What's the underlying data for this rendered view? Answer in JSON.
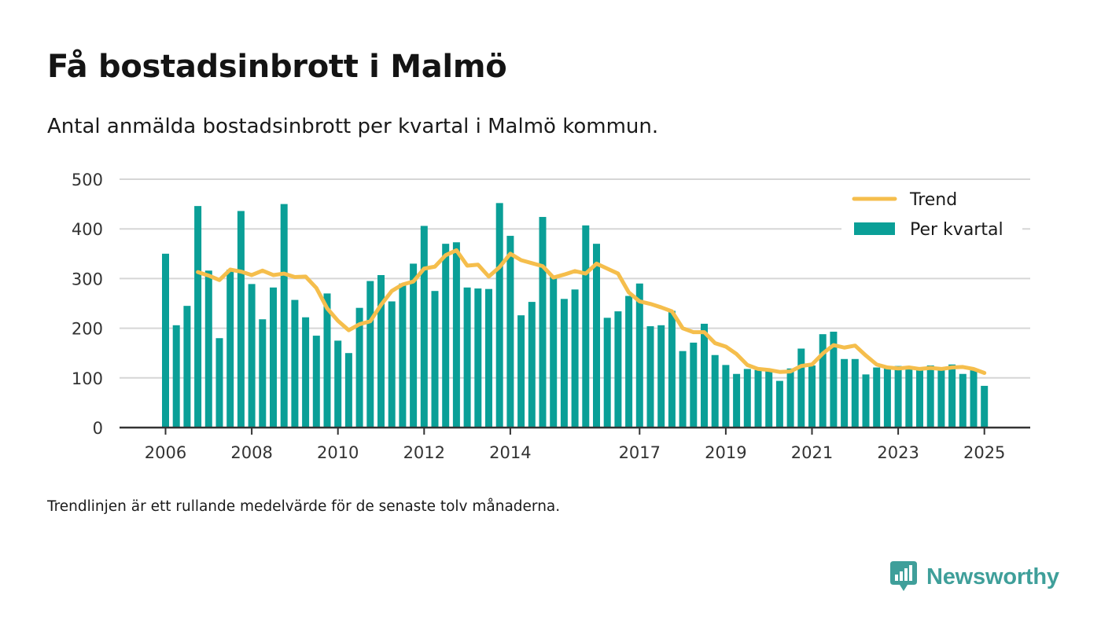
{
  "title": "Få bostadsinbrott i Malmö",
  "subtitle": "Antal anmälda bostadsinbrott per kvartal i Malmö kommun.",
  "note": "Trendlinjen är ett rullande medelvärde för de senaste tolv månaderna.",
  "brand": {
    "name": "Newsworthy",
    "color": "#3f9f9a"
  },
  "chart_data": {
    "type": "bar",
    "ylim": [
      0,
      500
    ],
    "y_ticks": [
      0,
      100,
      200,
      300,
      400,
      500
    ],
    "x_tick_labels": [
      "2006",
      "2008",
      "2010",
      "2012",
      "2014",
      "2017",
      "2019",
      "2021",
      "2023",
      "2025"
    ],
    "x_tick_index": [
      0,
      8,
      16,
      24,
      32,
      44,
      52,
      60,
      68,
      76
    ],
    "grid": true,
    "legend_position": "top-right",
    "series": [
      {
        "name": "Per kvartal",
        "type": "bar",
        "color": "#0a9f97",
        "values": [
          350,
          206,
          245,
          446,
          316,
          180,
          318,
          436,
          289,
          218,
          282,
          450,
          257,
          222,
          185,
          270,
          175,
          150,
          241,
          295,
          307,
          254,
          290,
          330,
          406,
          275,
          370,
          373,
          282,
          280,
          279,
          452,
          386,
          226,
          253,
          424,
          306,
          259,
          278,
          407,
          370,
          221,
          234,
          265,
          290,
          204,
          206,
          235,
          154,
          171,
          209,
          146,
          126,
          108,
          118,
          116,
          115,
          94,
          119,
          159,
          125,
          188,
          193,
          138,
          138,
          107,
          121,
          121,
          124,
          120,
          121,
          125,
          118,
          127,
          108,
          116,
          84
        ]
      },
      {
        "name": "Trend",
        "type": "line",
        "color": "#f5be4c",
        "values": [
          null,
          null,
          null,
          313,
          306,
          297,
          318,
          314,
          307,
          316,
          307,
          310,
          303,
          304,
          281,
          240,
          215,
          196,
          208,
          214,
          247,
          275,
          288,
          294,
          320,
          324,
          347,
          357,
          326,
          328,
          304,
          323,
          350,
          337,
          331,
          325,
          302,
          308,
          315,
          310,
          330,
          320,
          310,
          272,
          254,
          249,
          242,
          234,
          200,
          192,
          192,
          170,
          163,
          148,
          126,
          118,
          116,
          112,
          113,
          124,
          127,
          149,
          166,
          161,
          165,
          145,
          127,
          121,
          119,
          121,
          118,
          120,
          118,
          121,
          122,
          118,
          110
        ]
      }
    ]
  }
}
